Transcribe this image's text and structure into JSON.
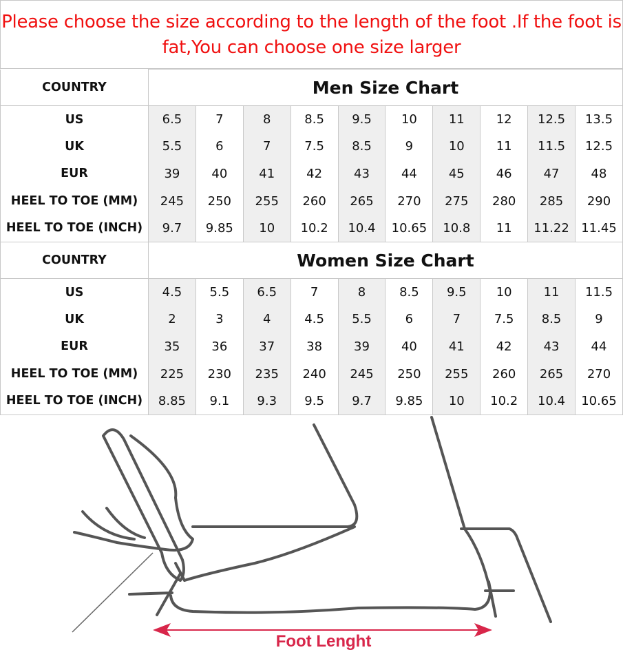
{
  "notice": "Please choose the size according to the length of the foot .If the foot is fat,You can choose one size larger",
  "men": {
    "country_label": "COUNTRY",
    "title": "Men Size Chart",
    "rows": [
      {
        "label": "US",
        "values": [
          "6.5",
          "7",
          "8",
          "8.5",
          "9.5",
          "10",
          "11",
          "12",
          "12.5",
          "13.5"
        ]
      },
      {
        "label": "UK",
        "values": [
          "5.5",
          "6",
          "7",
          "7.5",
          "8.5",
          "9",
          "10",
          "11",
          "11.5",
          "12.5"
        ]
      },
      {
        "label": "EUR",
        "values": [
          "39",
          "40",
          "41",
          "42",
          "43",
          "44",
          "45",
          "46",
          "47",
          "48"
        ]
      },
      {
        "label": "HEEL TO TOE (MM)",
        "values": [
          "245",
          "250",
          "255",
          "260",
          "265",
          "270",
          "275",
          "280",
          "285",
          "290"
        ]
      },
      {
        "label": "HEEL TO TOE (INCH)",
        "values": [
          "9.7",
          "9.85",
          "10",
          "10.2",
          "10.4",
          "10.65",
          "10.8",
          "11",
          "11.22",
          "11.45"
        ]
      }
    ]
  },
  "women": {
    "country_label": "COUNTRY",
    "title": "Women Size Chart",
    "rows": [
      {
        "label": "US",
        "values": [
          "4.5",
          "5.5",
          "6.5",
          "7",
          "8",
          "8.5",
          "9.5",
          "10",
          "11",
          "11.5"
        ]
      },
      {
        "label": "UK",
        "values": [
          "2",
          "3",
          "4",
          "4.5",
          "5.5",
          "6",
          "7",
          "7.5",
          "8.5",
          "9"
        ]
      },
      {
        "label": "EUR",
        "values": [
          "35",
          "36",
          "37",
          "38",
          "39",
          "40",
          "41",
          "42",
          "43",
          "44"
        ]
      },
      {
        "label": "HEEL TO TOE (MM)",
        "values": [
          "225",
          "230",
          "235",
          "240",
          "245",
          "250",
          "255",
          "260",
          "265",
          "270"
        ]
      },
      {
        "label": "HEEL TO TOE (INCH)",
        "values": [
          "8.85",
          "9.1",
          "9.3",
          "9.5",
          "9.7",
          "9.85",
          "10",
          "10.2",
          "10.4",
          "10.65"
        ]
      }
    ]
  },
  "illustration": {
    "caption": "Foot Lenght",
    "arrow_color": "#d8264a",
    "line_color": "#555555"
  },
  "colors": {
    "notice": "#f01010",
    "shade": "#efefef"
  }
}
